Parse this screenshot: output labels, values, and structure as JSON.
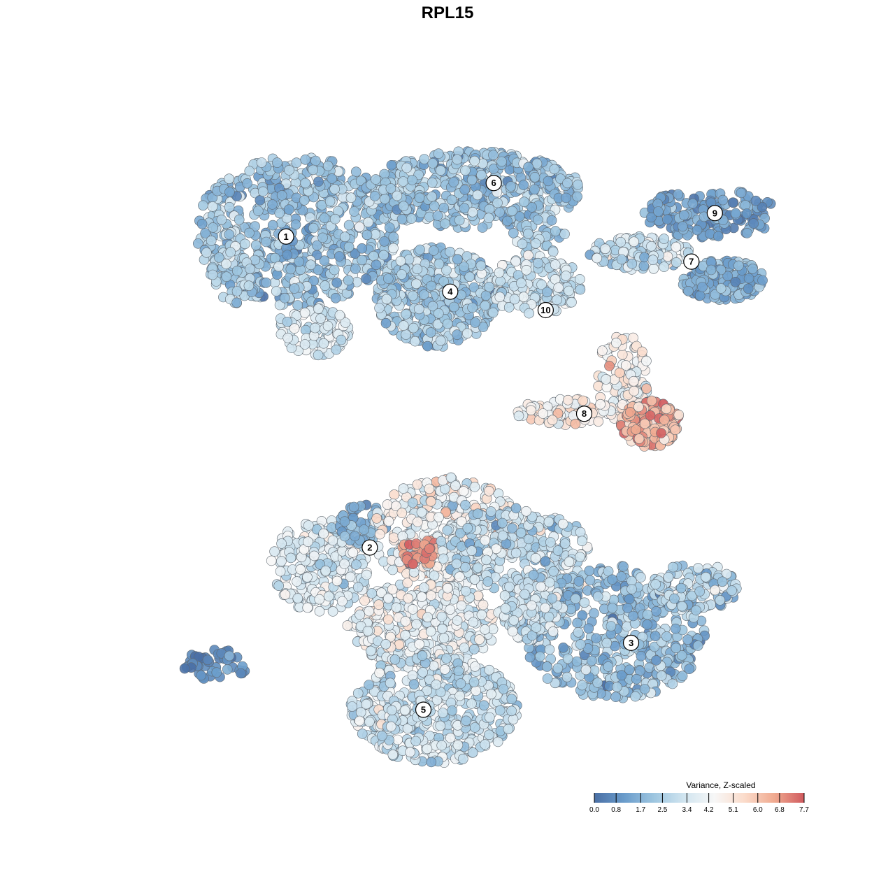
{
  "chart_data": {
    "type": "scatter",
    "title": "RPL15",
    "xlabel": "",
    "ylabel": "",
    "grid": false,
    "legend": {
      "title": "Variance, Z-scaled",
      "placement": "bottom-right",
      "ticks": [
        "0.0",
        "0.8",
        "1.7",
        "2.5",
        "3.4",
        "4.2",
        "5.1",
        "6.0",
        "6.8",
        "7.7"
      ],
      "min": 0.0,
      "max": 7.7,
      "colors": [
        "#4a6fa5",
        "#6a9ccb",
        "#9ec6e0",
        "#d1e5f0",
        "#f7f7f7",
        "#fbdccb",
        "#f0aa90",
        "#d05a5e"
      ]
    },
    "clusters": [
      {
        "label": "1",
        "x": -9.6,
        "y": 11.2
      },
      {
        "label": "2",
        "x": -4.6,
        "y": -7.4
      },
      {
        "label": "3",
        "x": 11.0,
        "y": -13.1
      },
      {
        "label": "4",
        "x": 0.2,
        "y": 7.9
      },
      {
        "label": "5",
        "x": -1.4,
        "y": -17.1
      },
      {
        "label": "6",
        "x": 2.8,
        "y": 14.4
      },
      {
        "label": "7",
        "x": 14.6,
        "y": 9.7
      },
      {
        "label": "8",
        "x": 8.2,
        "y": 0.6
      },
      {
        "label": "9",
        "x": 16.0,
        "y": 12.6
      },
      {
        "label": "10",
        "x": 5.9,
        "y": 6.8
      }
    ],
    "regions": [
      {
        "cluster": "1",
        "cx": -9.0,
        "cy": 11.5,
        "rx": 6.0,
        "ry": 4.5,
        "n": 650,
        "mean": 2.1,
        "sd": 0.7
      },
      {
        "cluster": "1",
        "cx": -12.9,
        "cy": 8.8,
        "rx": 1.3,
        "ry": 2.0,
        "n": 40,
        "mean": 2.8,
        "sd": 0.6
      },
      {
        "cluster": "1",
        "cx": -8.0,
        "cy": 5.6,
        "rx": 2.2,
        "ry": 1.6,
        "n": 90,
        "mean": 3.7,
        "sd": 0.6
      },
      {
        "cluster": "6",
        "cx": 1.5,
        "cy": 14.0,
        "rx": 6.5,
        "ry": 2.3,
        "n": 480,
        "mean": 2.2,
        "sd": 0.7
      },
      {
        "cluster": "6",
        "cx": 5.5,
        "cy": 11.2,
        "rx": 1.6,
        "ry": 1.2,
        "n": 40,
        "mean": 2.5,
        "sd": 0.6
      },
      {
        "cluster": "4",
        "cx": -0.6,
        "cy": 7.6,
        "rx": 3.6,
        "ry": 3.0,
        "n": 420,
        "mean": 2.5,
        "sd": 0.7
      },
      {
        "cluster": "10",
        "cx": 5.3,
        "cy": 8.3,
        "rx": 2.8,
        "ry": 1.8,
        "n": 150,
        "mean": 3.3,
        "sd": 0.6
      },
      {
        "cluster": "7",
        "cx": 11.5,
        "cy": 10.2,
        "rx": 3.0,
        "ry": 1.0,
        "n": 120,
        "mean": 3.2,
        "sd": 0.9
      },
      {
        "cluster": "7",
        "cx": 16.5,
        "cy": 8.6,
        "rx": 2.5,
        "ry": 1.2,
        "n": 170,
        "mean": 1.7,
        "sd": 0.6
      },
      {
        "cluster": "9",
        "cx": 15.8,
        "cy": 12.6,
        "rx": 4.0,
        "ry": 1.5,
        "n": 160,
        "mean": 1.2,
        "sd": 0.5
      },
      {
        "cluster": "8",
        "cx": 10.5,
        "cy": 2.8,
        "rx": 1.5,
        "ry": 3.0,
        "n": 110,
        "mean": 4.6,
        "sd": 0.7
      },
      {
        "cluster": "8",
        "cx": 7.0,
        "cy": 0.7,
        "rx": 3.0,
        "ry": 0.8,
        "n": 90,
        "mean": 4.8,
        "sd": 0.6
      },
      {
        "cluster": "8",
        "cx": 12.2,
        "cy": 0.0,
        "rx": 1.8,
        "ry": 1.4,
        "n": 170,
        "mean": 6.3,
        "sd": 0.9
      },
      {
        "cluster": "2",
        "cx": -7.5,
        "cy": -8.5,
        "rx": 3.0,
        "ry": 2.8,
        "n": 230,
        "mean": 3.6,
        "sd": 0.6
      },
      {
        "cluster": "2",
        "cx": -5.0,
        "cy": -6.0,
        "rx": 1.4,
        "ry": 1.2,
        "n": 50,
        "mean": 1.6,
        "sd": 0.6
      },
      {
        "cluster": "5",
        "cx": 0.0,
        "cy": -6.5,
        "rx": 4.5,
        "ry": 3.3,
        "n": 320,
        "mean": 4.4,
        "sd": 0.9
      },
      {
        "cluster": "5",
        "cx": -1.6,
        "cy": -7.6,
        "rx": 1.2,
        "ry": 0.9,
        "n": 30,
        "mean": 7.0,
        "sd": 0.5
      },
      {
        "cluster": "5",
        "cx": 4.0,
        "cy": -7.5,
        "rx": 4.5,
        "ry": 2.5,
        "n": 260,
        "mean": 2.9,
        "sd": 0.8
      },
      {
        "cluster": "5",
        "cx": -1.5,
        "cy": -12.0,
        "rx": 4.5,
        "ry": 2.6,
        "n": 330,
        "mean": 4.0,
        "sd": 0.7
      },
      {
        "cluster": "5",
        "cx": -0.8,
        "cy": -17.0,
        "rx": 5.0,
        "ry": 3.3,
        "n": 480,
        "mean": 3.2,
        "sd": 0.7
      },
      {
        "cluster": "3",
        "cx": 10.0,
        "cy": -12.5,
        "rx": 5.5,
        "ry": 4.0,
        "n": 480,
        "mean": 2.0,
        "sd": 0.8
      },
      {
        "cluster": "3",
        "cx": 14.8,
        "cy": -9.8,
        "rx": 2.5,
        "ry": 1.5,
        "n": 100,
        "mean": 2.6,
        "sd": 0.8
      },
      {
        "cluster": "3",
        "cx": 5.0,
        "cy": -11.0,
        "rx": 2.0,
        "ry": 2.0,
        "n": 120,
        "mean": 3.3,
        "sd": 0.7
      },
      {
        "cluster": "",
        "cx": -13.8,
        "cy": -14.4,
        "rx": 2.0,
        "ry": 0.9,
        "n": 45,
        "mean": 0.6,
        "sd": 0.4
      }
    ],
    "xlim": [
      -20,
      23
    ],
    "ylim": [
      -24,
      22
    ]
  }
}
